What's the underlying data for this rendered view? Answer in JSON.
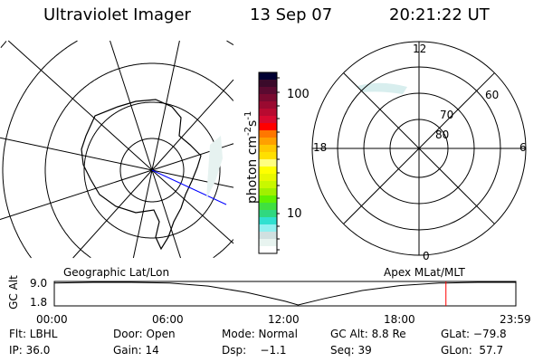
{
  "header": {
    "instrument": "Ultraviolet Imager",
    "date": "13 Sep 07",
    "time": "20:21:22 UT"
  },
  "colorbar": {
    "label": "photon cm",
    "label_sup1": "-2",
    "label_s": "s",
    "label_sup2": "-1",
    "ticks": [
      "100",
      "10"
    ],
    "colors": [
      "#000033",
      "#3a0a2a",
      "#5a0a30",
      "#7a0a30",
      "#9a0a30",
      "#b80a30",
      "#d80a30",
      "#ff0000",
      "#ff7700",
      "#ffa000",
      "#ffc800",
      "#ffe000",
      "#ffff80",
      "#ffff00",
      "#e8f800",
      "#c8f800",
      "#a0f000",
      "#60f000",
      "#40e040",
      "#30d880",
      "#30e0d0",
      "#90f0f0",
      "#d0e0e0",
      "#e8f4f0",
      "#ffffff"
    ]
  },
  "left_map": {
    "label": "Geographic Lat/Lon"
  },
  "right_map": {
    "label": "Apex MLat/MLT",
    "mlt_labels": [
      "12",
      "18",
      "6",
      "0"
    ],
    "lat_labels": [
      "80",
      "70",
      "60"
    ]
  },
  "timeline": {
    "ylabel": "GC Alt",
    "yticks": [
      "9.0",
      "1.8"
    ],
    "xticks": [
      "00:00",
      "06:00",
      "12:00",
      "18:00",
      "23:59"
    ],
    "current_time_color": "#ff0000"
  },
  "chart_data": {
    "type": "line",
    "ylabel": "GC Alt",
    "ylim": [
      1.8,
      9.0
    ],
    "x": [
      "00:00",
      "02:00",
      "04:00",
      "06:00",
      "08:00",
      "10:00",
      "12:00",
      "12:40",
      "14:00",
      "16:00",
      "18:00",
      "20:00",
      "20:21",
      "22:00",
      "23:59"
    ],
    "values": [
      8.8,
      9.0,
      9.0,
      8.8,
      7.8,
      5.8,
      3.0,
      1.8,
      3.8,
      6.4,
      8.0,
      8.8,
      8.8,
      9.0,
      9.0
    ],
    "current_time": "20:21"
  },
  "status": {
    "row1": [
      "Flt: LBHL",
      "Door: Open",
      "Mode: Normal",
      "GC Alt: 8.8 Re",
      "GLat: −79.8"
    ],
    "row2": [
      "IP: 36.0",
      "Gain: 14",
      "Dsp:    −1.1",
      "Seq: 39",
      "GLon:  57.7"
    ]
  }
}
